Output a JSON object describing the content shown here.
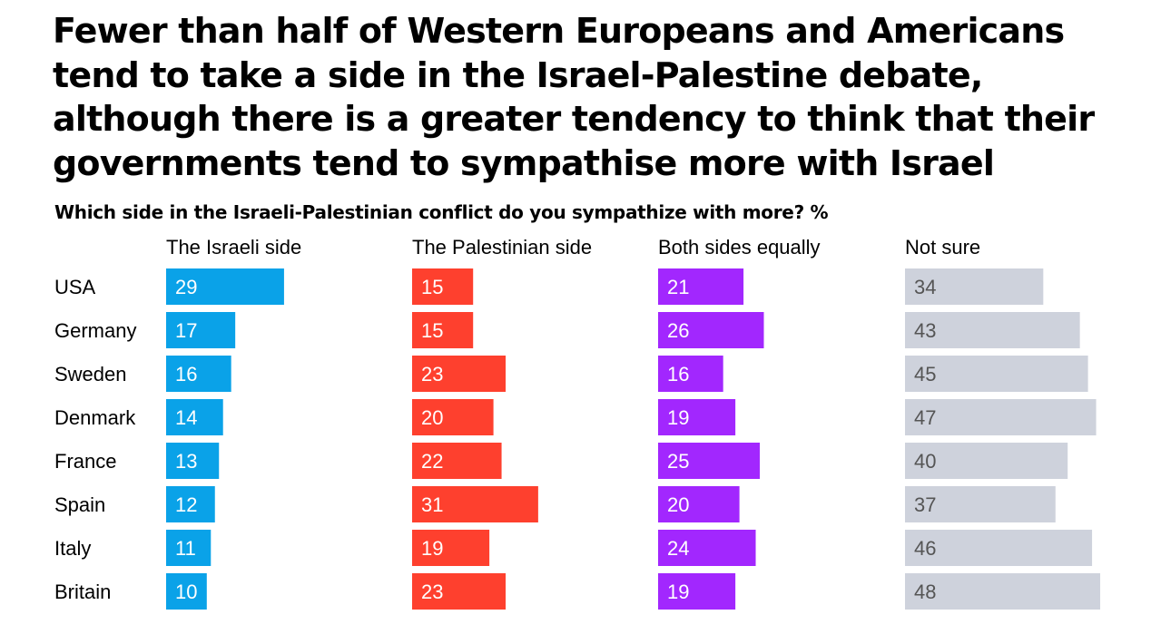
{
  "title": "Fewer than half of Western Europeans and Americans tend to take a side in the Israel-Palestine debate, although there is a greater tendency to think that their governments tend to sympathise more with Israel",
  "subtitle": "Which side in the Israeli-Palestinian conflict do you sympathize with more? %",
  "chart_data": {
    "type": "bar",
    "orientation": "horizontal",
    "layout": "small-multiples",
    "categories": [
      "USA",
      "Germany",
      "Sweden",
      "Denmark",
      "France",
      "Spain",
      "Italy",
      "Britain"
    ],
    "series": [
      {
        "name": "The Israeli side",
        "color": "#0aa2e8",
        "values": [
          29,
          17,
          16,
          14,
          13,
          12,
          11,
          10
        ]
      },
      {
        "name": "The Palestinian side",
        "color": "#fe402e",
        "values": [
          15,
          15,
          23,
          20,
          22,
          31,
          19,
          23
        ]
      },
      {
        "name": "Both sides equally",
        "color": "#a227fe",
        "values": [
          21,
          26,
          16,
          19,
          25,
          20,
          24,
          19
        ]
      },
      {
        "name": "Not sure",
        "color": "#ced2dc",
        "values": [
          34,
          43,
          45,
          47,
          40,
          37,
          46,
          48
        ]
      }
    ],
    "label_colors": {
      "on_colored_bar": "#ffffff",
      "on_grey_bar": "#555555",
      "outside_bar": "#000000"
    },
    "grid": false,
    "axes_visible": false,
    "legend": "panel headers"
  }
}
